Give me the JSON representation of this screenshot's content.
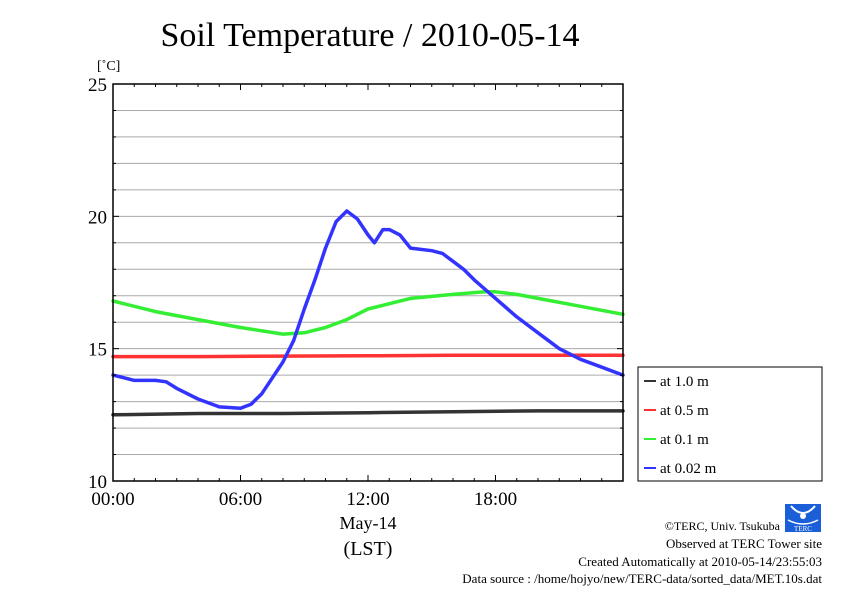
{
  "chart_data": {
    "type": "line",
    "title": "Soil Temperature / 2010-05-14",
    "ylabel": "[˚C]",
    "xlabel_date": "May-14",
    "xlabel_tz": "(LST)",
    "ylim": [
      10,
      25
    ],
    "xlim_hours": [
      0,
      24
    ],
    "yticks": [
      10,
      15,
      20,
      25
    ],
    "xticks": [
      {
        "h": 0,
        "label": "00:00"
      },
      {
        "h": 6,
        "label": "06:00"
      },
      {
        "h": 12,
        "label": "12:00"
      },
      {
        "h": 18,
        "label": "18:00"
      }
    ],
    "grid": true,
    "legend_position": "right-bottom-outside",
    "series": [
      {
        "name": "at 1.0 m",
        "color": "#333333",
        "x": [
          0,
          4,
          8,
          12,
          16,
          20,
          24
        ],
        "y": [
          12.5,
          12.55,
          12.55,
          12.58,
          12.62,
          12.65,
          12.65
        ]
      },
      {
        "name": "at 0.5 m",
        "color": "#ff3333",
        "x": [
          0,
          4,
          8,
          12,
          16,
          20,
          24
        ],
        "y": [
          14.7,
          14.7,
          14.72,
          14.73,
          14.75,
          14.75,
          14.75
        ]
      },
      {
        "name": "at 0.1 m",
        "color": "#33ee33",
        "x": [
          0,
          2,
          4,
          6,
          8,
          9,
          10,
          11,
          12,
          13,
          14,
          16,
          17.5,
          18,
          19,
          20,
          22,
          24
        ],
        "y": [
          16.8,
          16.4,
          16.1,
          15.8,
          15.55,
          15.6,
          15.8,
          16.1,
          16.5,
          16.7,
          16.9,
          17.05,
          17.15,
          17.15,
          17.05,
          16.9,
          16.6,
          16.3
        ]
      },
      {
        "name": "at 0.02 m",
        "color": "#3333ff",
        "x": [
          0,
          1,
          2,
          2.5,
          3,
          4,
          5,
          6,
          6.5,
          7,
          7.5,
          8,
          8.5,
          9,
          9.5,
          10,
          10.5,
          11,
          11.5,
          12,
          12.3,
          12.7,
          13,
          13.5,
          14,
          15,
          15.5,
          16,
          16.5,
          17,
          18,
          19,
          20,
          21,
          22,
          23,
          24
        ],
        "y": [
          14.0,
          13.8,
          13.8,
          13.75,
          13.5,
          13.1,
          12.8,
          12.75,
          12.9,
          13.3,
          13.9,
          14.5,
          15.3,
          16.5,
          17.6,
          18.8,
          19.8,
          20.2,
          19.9,
          19.3,
          19.0,
          19.5,
          19.5,
          19.3,
          18.8,
          18.7,
          18.6,
          18.3,
          18.0,
          17.6,
          16.9,
          16.2,
          15.6,
          15.0,
          14.6,
          14.3,
          14.0
        ]
      }
    ]
  },
  "footer": {
    "copyright": "©TERC, Univ. Tsukuba",
    "observed": "Observed at TERC Tower site",
    "created": "Created Automatically at 2010-05-14/23:55:03",
    "source": "Data source : /home/hojyo/new/TERC-data/sorted_data/MET.10s.dat",
    "logo_text": "TERC"
  }
}
